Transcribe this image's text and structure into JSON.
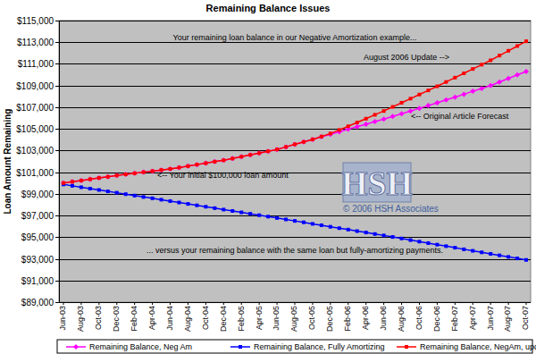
{
  "chart_data": {
    "type": "line",
    "title": "Remaining Balance Issues",
    "y_label": "Loan Amount Remaining",
    "annotations": [
      "Your remaining loan balance in our Negative Amortization example...",
      "August 2006 Update -->",
      "<-- Original Article Forecast",
      "<-- Your initial $100,000 loan amount",
      "... versus your remaining balance with the same loan but fully-amortizing payments."
    ],
    "logo": "HSH",
    "source": "© 2006 HSH Associates",
    "categories": [
      "Jun-03",
      null,
      "Aug-03",
      null,
      "Oct-03",
      null,
      "Dec-03",
      null,
      "Feb-04",
      null,
      "Apr-04",
      null,
      "Jun-04",
      null,
      "Aug-04",
      null,
      "Oct-04",
      null,
      "Dec-04",
      null,
      "Feb-05",
      null,
      "Apr-05",
      null,
      "Jun-05",
      null,
      "Aug-05",
      null,
      "Oct-05",
      null,
      "Dec-05",
      null,
      "Feb-06",
      null,
      "Apr-06",
      null,
      "Jun-06",
      null,
      "Aug-06",
      null,
      "Oct-06",
      null,
      "Dec-06",
      null,
      "Feb-07",
      null,
      "Apr-07",
      null,
      "Jun-07",
      null,
      "Aug-07",
      null,
      "Oct-07"
    ],
    "series": [
      {
        "name": "Remaining Balance, Neg Am",
        "color": "#ff00ff",
        "marker": "diamond",
        "values": [
          100000,
          100120,
          100230,
          100350,
          100470,
          100580,
          100700,
          100800,
          100900,
          101000,
          101100,
          101200,
          101300,
          101430,
          101560,
          101700,
          101830,
          101970,
          102100,
          102260,
          102430,
          102600,
          102760,
          102930,
          103100,
          103330,
          103570,
          103800,
          104030,
          104270,
          104500,
          104730,
          104970,
          105200,
          105430,
          105670,
          105900,
          106150,
          106400,
          106650,
          106900,
          107150,
          107400,
          107670,
          107930,
          108200,
          108470,
          108730,
          109000,
          109330,
          109650,
          109980,
          110300
        ]
      },
      {
        "name": "Remaining Balance, Fully Amortizing",
        "color": "#0000ff",
        "marker": "square",
        "values": [
          99870,
          99740,
          99610,
          99480,
          99360,
          99230,
          99100,
          98970,
          98840,
          98710,
          98590,
          98460,
          98330,
          98200,
          98070,
          97940,
          97810,
          97680,
          97550,
          97420,
          97290,
          97160,
          97030,
          96900,
          96770,
          96640,
          96500,
          96370,
          96230,
          96100,
          95960,
          95830,
          95700,
          95560,
          95430,
          95290,
          95160,
          95020,
          94880,
          94730,
          94590,
          94450,
          94310,
          94170,
          94030,
          93880,
          93740,
          93600,
          93460,
          93320,
          93180,
          93040,
          92900
        ]
      },
      {
        "name": "Remaining Balance, NegAm, update",
        "color": "#ff0000",
        "marker": "square",
        "values": [
          100000,
          100120,
          100230,
          100350,
          100470,
          100580,
          100700,
          100800,
          100900,
          101000,
          101100,
          101200,
          101300,
          101430,
          101560,
          101700,
          101830,
          101970,
          102100,
          102260,
          102430,
          102600,
          102760,
          102930,
          103100,
          103330,
          103570,
          103800,
          104030,
          104290,
          104570,
          104900,
          105240,
          105590,
          105940,
          106300,
          106650,
          107030,
          107410,
          107790,
          108170,
          108550,
          108930,
          109330,
          109730,
          110130,
          110530,
          110930,
          111330,
          111770,
          112210,
          112650,
          113090
        ]
      }
    ],
    "ylim": [
      89000,
      115000
    ],
    "yticks": [
      {
        "value": 89000,
        "label": "$89,000"
      },
      {
        "value": 91000,
        "label": "$91,000"
      },
      {
        "value": 93000,
        "label": "$93,000"
      },
      {
        "value": 95000,
        "label": "$95,000"
      },
      {
        "value": 97000,
        "label": "$97,000"
      },
      {
        "value": 99000,
        "label": "$99,000"
      },
      {
        "value": 101000,
        "label": "$101,000"
      },
      {
        "value": 103000,
        "label": "$103,000"
      },
      {
        "value": 105000,
        "label": "$105,000"
      },
      {
        "value": 107000,
        "label": "$107,000"
      },
      {
        "value": 109000,
        "label": "$109,000"
      },
      {
        "value": 111000,
        "label": "$111,000"
      },
      {
        "value": 113000,
        "label": "$113,000"
      },
      {
        "value": 115000,
        "label": "$115,000"
      }
    ],
    "grid": true,
    "legend": "bottom"
  }
}
